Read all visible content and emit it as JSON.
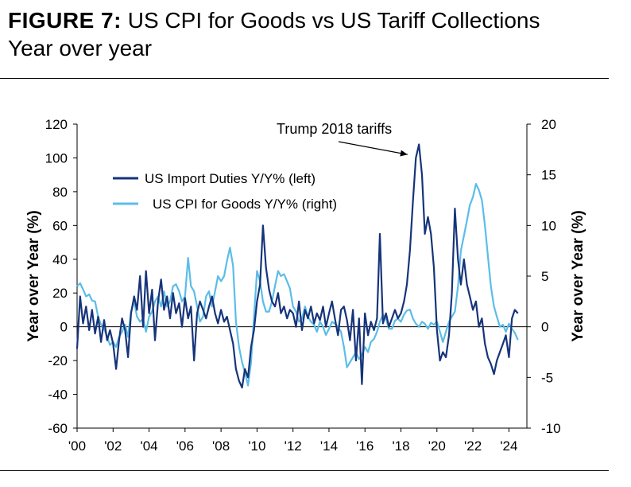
{
  "figure": {
    "label": "FIGURE 7:",
    "title": "US CPI for Goods vs US Tariff Collections",
    "subtitle": "Year over year"
  },
  "chart_data": {
    "type": "line",
    "title": "US CPI for Goods vs US Tariff Collections",
    "subtitle": "Year over year",
    "x_unit": "year",
    "xlim": [
      2000,
      2025
    ],
    "x_ticks": [
      2000,
      2002,
      2004,
      2006,
      2008,
      2010,
      2012,
      2014,
      2016,
      2018,
      2020,
      2022,
      2024
    ],
    "x_tick_labels": [
      "'00",
      "'02",
      "'04",
      "'06",
      "'08",
      "'10",
      "'12",
      "'14",
      "'16",
      "'18",
      "'20",
      "'22",
      "'24"
    ],
    "ylabel_left": "Year over Year (%)",
    "ylabel_right": "Year over Year (%)",
    "ylim_left": [
      -60,
      120
    ],
    "ylim_right": [
      -10,
      20
    ],
    "y_ticks_left": [
      -60,
      -40,
      -20,
      0,
      20,
      40,
      60,
      80,
      100,
      120
    ],
    "y_ticks_right": [
      -10,
      -5,
      0,
      5,
      10,
      15,
      20
    ],
    "grid": false,
    "legend_position": "top-left",
    "annotation": {
      "text": "Trump 2018 tariffs",
      "points_to": [
        2018.9,
        102
      ]
    },
    "series": [
      {
        "name": "US Import Duties Y/Y% (left)",
        "axis": "left",
        "color": "#17347a",
        "points": [
          [
            2000.0,
            -13
          ],
          [
            2000.17,
            18
          ],
          [
            2000.33,
            2
          ],
          [
            2000.5,
            12
          ],
          [
            2000.67,
            -2
          ],
          [
            2000.83,
            10
          ],
          [
            2001.0,
            -4
          ],
          [
            2001.17,
            6
          ],
          [
            2001.33,
            -9
          ],
          [
            2001.5,
            4
          ],
          [
            2001.67,
            -8
          ],
          [
            2001.83,
            -2
          ],
          [
            2002.0,
            -10
          ],
          [
            2002.17,
            -25
          ],
          [
            2002.33,
            -8
          ],
          [
            2002.5,
            5
          ],
          [
            2002.67,
            -2
          ],
          [
            2002.83,
            -18
          ],
          [
            2003.0,
            8
          ],
          [
            2003.17,
            18
          ],
          [
            2003.33,
            10
          ],
          [
            2003.5,
            30
          ],
          [
            2003.67,
            0
          ],
          [
            2003.83,
            33
          ],
          [
            2004.0,
            8
          ],
          [
            2004.17,
            22
          ],
          [
            2004.33,
            -8
          ],
          [
            2004.5,
            15
          ],
          [
            2004.67,
            28
          ],
          [
            2004.83,
            10
          ],
          [
            2005.0,
            18
          ],
          [
            2005.17,
            5
          ],
          [
            2005.33,
            20
          ],
          [
            2005.5,
            8
          ],
          [
            2005.67,
            14
          ],
          [
            2005.83,
            0
          ],
          [
            2006.0,
            17
          ],
          [
            2006.17,
            5
          ],
          [
            2006.33,
            12
          ],
          [
            2006.5,
            -20
          ],
          [
            2006.67,
            8
          ],
          [
            2006.83,
            15
          ],
          [
            2007.0,
            10
          ],
          [
            2007.17,
            5
          ],
          [
            2007.33,
            12
          ],
          [
            2007.5,
            18
          ],
          [
            2007.67,
            8
          ],
          [
            2007.83,
            2
          ],
          [
            2008.0,
            10
          ],
          [
            2008.17,
            3
          ],
          [
            2008.33,
            6
          ],
          [
            2008.5,
            -2
          ],
          [
            2008.67,
            -10
          ],
          [
            2008.83,
            -25
          ],
          [
            2009.0,
            -32
          ],
          [
            2009.17,
            -36
          ],
          [
            2009.33,
            -25
          ],
          [
            2009.5,
            -30
          ],
          [
            2009.67,
            -12
          ],
          [
            2009.83,
            -2
          ],
          [
            2010.0,
            15
          ],
          [
            2010.17,
            25
          ],
          [
            2010.33,
            60
          ],
          [
            2010.5,
            35
          ],
          [
            2010.67,
            22
          ],
          [
            2010.83,
            15
          ],
          [
            2011.0,
            12
          ],
          [
            2011.17,
            20
          ],
          [
            2011.33,
            8
          ],
          [
            2011.5,
            12
          ],
          [
            2011.67,
            5
          ],
          [
            2011.83,
            10
          ],
          [
            2012.0,
            8
          ],
          [
            2012.17,
            0
          ],
          [
            2012.33,
            15
          ],
          [
            2012.5,
            -2
          ],
          [
            2012.67,
            10
          ],
          [
            2012.83,
            5
          ],
          [
            2013.0,
            12
          ],
          [
            2013.17,
            2
          ],
          [
            2013.33,
            8
          ],
          [
            2013.5,
            4
          ],
          [
            2013.67,
            12
          ],
          [
            2013.83,
            0
          ],
          [
            2014.0,
            8
          ],
          [
            2014.17,
            15
          ],
          [
            2014.33,
            5
          ],
          [
            2014.5,
            -5
          ],
          [
            2014.67,
            10
          ],
          [
            2014.83,
            12
          ],
          [
            2015.0,
            4
          ],
          [
            2015.17,
            -8
          ],
          [
            2015.33,
            10
          ],
          [
            2015.5,
            -20
          ],
          [
            2015.67,
            5
          ],
          [
            2015.83,
            -34
          ],
          [
            2016.0,
            8
          ],
          [
            2016.17,
            -5
          ],
          [
            2016.33,
            3
          ],
          [
            2016.5,
            -2
          ],
          [
            2016.67,
            5
          ],
          [
            2016.83,
            55
          ],
          [
            2017.0,
            2
          ],
          [
            2017.17,
            8
          ],
          [
            2017.33,
            0
          ],
          [
            2017.5,
            5
          ],
          [
            2017.67,
            10
          ],
          [
            2017.83,
            5
          ],
          [
            2018.0,
            8
          ],
          [
            2018.17,
            15
          ],
          [
            2018.33,
            25
          ],
          [
            2018.5,
            45
          ],
          [
            2018.67,
            75
          ],
          [
            2018.83,
            100
          ],
          [
            2019.0,
            108
          ],
          [
            2019.17,
            90
          ],
          [
            2019.33,
            55
          ],
          [
            2019.5,
            65
          ],
          [
            2019.67,
            55
          ],
          [
            2019.83,
            35
          ],
          [
            2020.0,
            -2
          ],
          [
            2020.17,
            -20
          ],
          [
            2020.33,
            -15
          ],
          [
            2020.5,
            -18
          ],
          [
            2020.67,
            -5
          ],
          [
            2020.83,
            20
          ],
          [
            2021.0,
            70
          ],
          [
            2021.17,
            40
          ],
          [
            2021.33,
            25
          ],
          [
            2021.5,
            40
          ],
          [
            2021.67,
            25
          ],
          [
            2021.83,
            18
          ],
          [
            2022.0,
            10
          ],
          [
            2022.17,
            15
          ],
          [
            2022.33,
            0
          ],
          [
            2022.5,
            5
          ],
          [
            2022.67,
            -10
          ],
          [
            2022.83,
            -18
          ],
          [
            2023.0,
            -22
          ],
          [
            2023.17,
            -28
          ],
          [
            2023.33,
            -20
          ],
          [
            2023.5,
            -15
          ],
          [
            2023.67,
            -10
          ],
          [
            2023.83,
            -5
          ],
          [
            2024.0,
            -18
          ],
          [
            2024.17,
            5
          ],
          [
            2024.33,
            10
          ],
          [
            2024.5,
            8
          ]
        ]
      },
      {
        "name": "US CPI for Goods Y/Y% (right)",
        "axis": "right",
        "color": "#5bbde8",
        "points": [
          [
            2000.0,
            4.0
          ],
          [
            2000.17,
            4.3
          ],
          [
            2000.33,
            3.7
          ],
          [
            2000.5,
            3.0
          ],
          [
            2000.67,
            3.2
          ],
          [
            2000.83,
            2.6
          ],
          [
            2001.0,
            2.5
          ],
          [
            2001.17,
            1.0
          ],
          [
            2001.33,
            0.2
          ],
          [
            2001.5,
            -0.2
          ],
          [
            2001.67,
            -1.0
          ],
          [
            2001.83,
            -1.8
          ],
          [
            2002.0,
            -1.5
          ],
          [
            2002.17,
            -2.0
          ],
          [
            2002.33,
            -1.0
          ],
          [
            2002.5,
            -0.5
          ],
          [
            2002.67,
            0.2
          ],
          [
            2002.83,
            -1.0
          ],
          [
            2003.0,
            1.5
          ],
          [
            2003.17,
            2.5
          ],
          [
            2003.33,
            1.0
          ],
          [
            2003.5,
            0.5
          ],
          [
            2003.67,
            0.8
          ],
          [
            2003.83,
            -0.5
          ],
          [
            2004.0,
            1.0
          ],
          [
            2004.17,
            1.5
          ],
          [
            2004.33,
            2.5
          ],
          [
            2004.5,
            3.0
          ],
          [
            2004.67,
            2.0
          ],
          [
            2004.83,
            3.5
          ],
          [
            2005.0,
            2.0
          ],
          [
            2005.17,
            2.5
          ],
          [
            2005.33,
            4.0
          ],
          [
            2005.5,
            4.2
          ],
          [
            2005.67,
            3.5
          ],
          [
            2005.83,
            2.5
          ],
          [
            2006.0,
            3.0
          ],
          [
            2006.17,
            6.8
          ],
          [
            2006.33,
            4.0
          ],
          [
            2006.5,
            3.5
          ],
          [
            2006.67,
            2.0
          ],
          [
            2006.83,
            0.5
          ],
          [
            2007.0,
            1.0
          ],
          [
            2007.17,
            3.0
          ],
          [
            2007.33,
            3.5
          ],
          [
            2007.5,
            2.0
          ],
          [
            2007.67,
            3.5
          ],
          [
            2007.83,
            5.0
          ],
          [
            2008.0,
            4.5
          ],
          [
            2008.17,
            5.0
          ],
          [
            2008.33,
            6.5
          ],
          [
            2008.5,
            7.8
          ],
          [
            2008.67,
            6.0
          ],
          [
            2008.83,
            0.5
          ],
          [
            2009.0,
            -2.0
          ],
          [
            2009.17,
            -3.5
          ],
          [
            2009.33,
            -4.5
          ],
          [
            2009.5,
            -5.8
          ],
          [
            2009.67,
            -3.5
          ],
          [
            2009.83,
            1.0
          ],
          [
            2010.0,
            5.5
          ],
          [
            2010.17,
            4.5
          ],
          [
            2010.33,
            2.5
          ],
          [
            2010.5,
            1.5
          ],
          [
            2010.67,
            1.5
          ],
          [
            2010.83,
            2.5
          ],
          [
            2011.0,
            4.0
          ],
          [
            2011.17,
            5.5
          ],
          [
            2011.33,
            5.0
          ],
          [
            2011.5,
            5.2
          ],
          [
            2011.67,
            4.5
          ],
          [
            2011.83,
            3.8
          ],
          [
            2012.0,
            2.0
          ],
          [
            2012.17,
            1.5
          ],
          [
            2012.33,
            0.5
          ],
          [
            2012.5,
            0.8
          ],
          [
            2012.67,
            2.0
          ],
          [
            2012.83,
            1.0
          ],
          [
            2013.0,
            0.5
          ],
          [
            2013.17,
            0.2
          ],
          [
            2013.33,
            -0.5
          ],
          [
            2013.5,
            0.5
          ],
          [
            2013.67,
            0.0
          ],
          [
            2013.83,
            -0.8
          ],
          [
            2014.0,
            -0.2
          ],
          [
            2014.17,
            0.5
          ],
          [
            2014.33,
            0.3
          ],
          [
            2014.5,
            0.0
          ],
          [
            2014.67,
            -0.5
          ],
          [
            2014.83,
            -2.0
          ],
          [
            2015.0,
            -4.0
          ],
          [
            2015.17,
            -3.5
          ],
          [
            2015.33,
            -3.0
          ],
          [
            2015.5,
            -2.5
          ],
          [
            2015.67,
            -3.2
          ],
          [
            2015.83,
            -2.8
          ],
          [
            2016.0,
            -2.0
          ],
          [
            2016.17,
            -2.5
          ],
          [
            2016.33,
            -1.5
          ],
          [
            2016.5,
            -1.2
          ],
          [
            2016.67,
            -0.5
          ],
          [
            2016.83,
            0.5
          ],
          [
            2017.0,
            1.2
          ],
          [
            2017.17,
            0.8
          ],
          [
            2017.33,
            -0.2
          ],
          [
            2017.5,
            -0.2
          ],
          [
            2017.67,
            0.6
          ],
          [
            2017.83,
            0.8
          ],
          [
            2018.0,
            0.5
          ],
          [
            2018.17,
            1.2
          ],
          [
            2018.33,
            1.6
          ],
          [
            2018.5,
            1.7
          ],
          [
            2018.67,
            0.8
          ],
          [
            2018.83,
            0.3
          ],
          [
            2019.0,
            0.0
          ],
          [
            2019.17,
            0.5
          ],
          [
            2019.33,
            0.3
          ],
          [
            2019.5,
            -0.2
          ],
          [
            2019.67,
            0.4
          ],
          [
            2019.83,
            0.2
          ],
          [
            2020.0,
            0.5
          ],
          [
            2020.17,
            -0.5
          ],
          [
            2020.33,
            -1.5
          ],
          [
            2020.5,
            -0.5
          ],
          [
            2020.67,
            0.5
          ],
          [
            2020.83,
            1.0
          ],
          [
            2021.0,
            1.5
          ],
          [
            2021.17,
            4.0
          ],
          [
            2021.33,
            7.5
          ],
          [
            2021.5,
            9.0
          ],
          [
            2021.67,
            10.5
          ],
          [
            2021.83,
            12.0
          ],
          [
            2022.0,
            12.8
          ],
          [
            2022.17,
            14.1
          ],
          [
            2022.33,
            13.5
          ],
          [
            2022.5,
            12.5
          ],
          [
            2022.67,
            10.0
          ],
          [
            2022.83,
            7.0
          ],
          [
            2023.0,
            4.0
          ],
          [
            2023.17,
            2.0
          ],
          [
            2023.33,
            1.0
          ],
          [
            2023.5,
            0.0
          ],
          [
            2023.67,
            0.2
          ],
          [
            2023.83,
            -0.5
          ],
          [
            2024.0,
            0.3
          ],
          [
            2024.17,
            -0.2
          ],
          [
            2024.33,
            -0.6
          ],
          [
            2024.5,
            -1.3
          ]
        ]
      }
    ]
  }
}
